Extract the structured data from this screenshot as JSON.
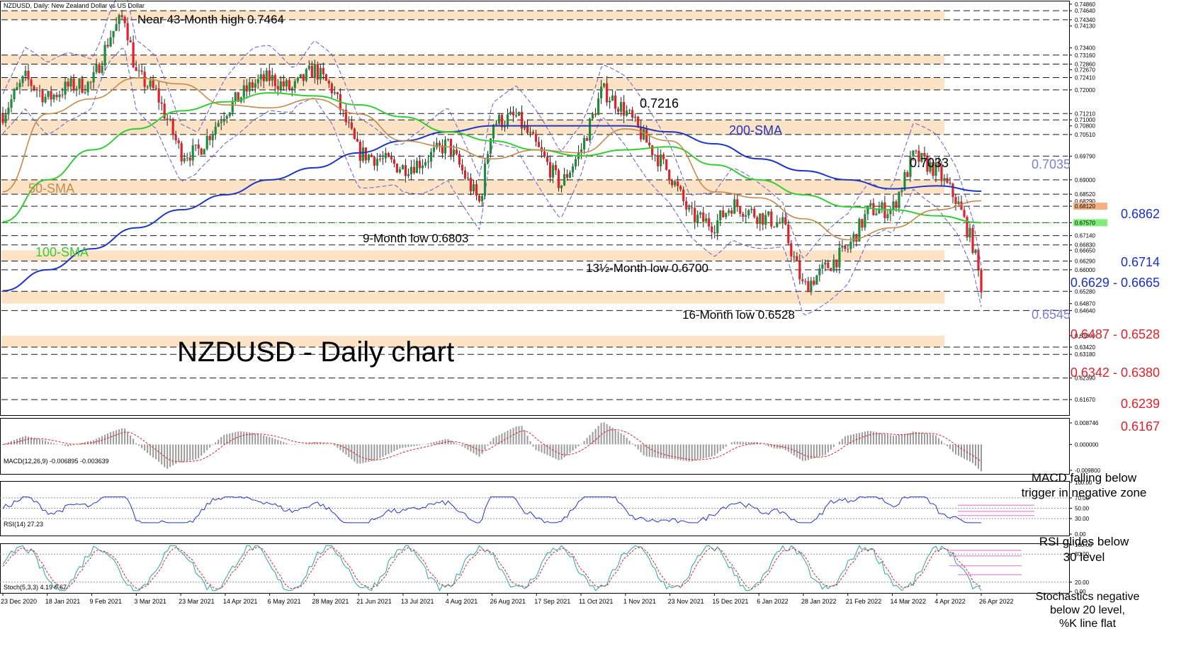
{
  "header": {
    "symbol_line": "NZDUSD, Daily:  New Zealand Dollar vs US Dollar",
    "macd_line": "MACD(12,26,9) -0.006895  -0.003639",
    "rsi_line": "RSI(14) 27.23",
    "stoch_line": "Stoch(5,3,3) 4.19  6.67"
  },
  "title": "NZDUSD - Daily chart",
  "x_labels": [
    "23 Dec 2020",
    "18 Jan 2021",
    "9 Feb 2021",
    "3 Mar 2021",
    "23 Mar 2021",
    "14 Apr 2021",
    "6 May 2021",
    "28 May 2021",
    "21 Jun 2021",
    "13 Jul 2021",
    "4 Aug 2021",
    "26 Aug 2021",
    "17 Sep 2021",
    "11 Oct 2021",
    "1 Nov 2021",
    "23 Nov 2021",
    "15 Dec 2021",
    "6 Jan 2022",
    "28 Jan 2022",
    "21 Feb 2022",
    "14 Mar 2022",
    "4 Apr 2022",
    "26 Apr 2022"
  ],
  "annotations": {
    "high_43m": "Near 43-Month high 0.7464",
    "peak_7216": "0.7216",
    "sma200": "200-SMA",
    "peak_7033": "0.7033",
    "sma50": "50-SMA",
    "sma100": "100-SMA",
    "low_9m": "9-Month low 0.6803",
    "low_13m": "13½-Month low 0.6700",
    "low_16m": "16-Month low 0.6528"
  },
  "right_levels": [
    {
      "text": "0.7035",
      "color": "#7b7fd4"
    },
    {
      "text": "0.6862",
      "color": "#1a2fcc"
    },
    {
      "text": "0.6714",
      "color": "#1a2fcc"
    },
    {
      "text": "0.6629 - 0.6665",
      "color": "#1a2fcc"
    },
    {
      "text": "0.6545",
      "color": "#7b7fd4"
    },
    {
      "text": "0.6487 - 0.6528",
      "color": "#e0202a"
    },
    {
      "text": "0.6342 - 0.6380",
      "color": "#e0202a"
    },
    {
      "text": "0.6239",
      "color": "#e0202a"
    },
    {
      "text": "0.6167",
      "color": "#e0202a"
    }
  ],
  "notes": {
    "macd": [
      "MACD falling below",
      "trigger in negative zone"
    ],
    "rsi": [
      "RSI glides below",
      "30 level"
    ],
    "stoch": [
      "Stochastics negative",
      "below 20 level,",
      "%K line flat"
    ]
  },
  "price_axis": [
    {
      "v": 0.7486,
      "t": "0.74860"
    },
    {
      "v": 0.7464,
      "t": "0.74640"
    },
    {
      "v": 0.7434,
      "t": "0.74340"
    },
    {
      "v": 0.7413,
      "t": "0.74130"
    },
    {
      "v": 0.734,
      "t": "0.73400"
    },
    {
      "v": 0.7316,
      "t": "0.73160"
    },
    {
      "v": 0.7286,
      "t": "0.72860"
    },
    {
      "v": 0.7267,
      "t": "0.72670"
    },
    {
      "v": 0.7241,
      "t": "0.72410"
    },
    {
      "v": 0.72,
      "t": "0.72000"
    },
    {
      "v": 0.7121,
      "t": "0.71210"
    },
    {
      "v": 0.71,
      "t": "0.71000"
    },
    {
      "v": 0.708,
      "t": "0.70800"
    },
    {
      "v": 0.7051,
      "t": "0.70510"
    },
    {
      "v": 0.6979,
      "t": "0.69790"
    },
    {
      "v": 0.69,
      "t": "0.69000"
    },
    {
      "v": 0.6852,
      "t": "0.68520"
    },
    {
      "v": 0.6829,
      "t": "0.68290"
    },
    {
      "v": 0.6812,
      "t": "0.68120",
      "bg": "#f4b183"
    },
    {
      "v": 0.6757,
      "t": "0.67570",
      "bg": "#7ef07a"
    },
    {
      "v": 0.6714,
      "t": "0.67140"
    },
    {
      "v": 0.6683,
      "t": "0.66830"
    },
    {
      "v": 0.6665,
      "t": "0.66650"
    },
    {
      "v": 0.6629,
      "t": "0.66290"
    },
    {
      "v": 0.66,
      "t": "0.66000"
    },
    {
      "v": 0.6528,
      "t": "0.65280"
    },
    {
      "v": 0.6487,
      "t": "0.64870"
    },
    {
      "v": 0.6464,
      "t": "0.64640"
    },
    {
      "v": 0.638,
      "t": "0.63800"
    },
    {
      "v": 0.6342,
      "t": "0.63420"
    },
    {
      "v": 0.6318,
      "t": "0.63180"
    },
    {
      "v": 0.6239,
      "t": "0.62390"
    },
    {
      "v": 0.6167,
      "t": "0.61670"
    }
  ],
  "macd_axis": [
    {
      "v": 0.008746,
      "t": "0.008746"
    },
    {
      "v": 0.0,
      "t": "0.000000"
    },
    {
      "v": -0.0098,
      "t": "-0.009800"
    }
  ],
  "osc_axis": [
    {
      "v": 100,
      "t": "100.00"
    },
    {
      "v": 70,
      "t": "70.00"
    },
    {
      "v": 50,
      "t": "50.00"
    },
    {
      "v": 30,
      "t": "30.00"
    },
    {
      "v": 0,
      "t": "0.00"
    }
  ],
  "stoch_axis": [
    {
      "v": 100,
      "t": "100.00"
    },
    {
      "v": 80,
      "t": "80.00"
    },
    {
      "v": 20,
      "t": "20.00"
    },
    {
      "v": 0,
      "t": "0.00"
    }
  ],
  "chart_data": {
    "type": "line",
    "title": "NZDUSD - Daily chart",
    "ylim": [
      0.612,
      0.7495
    ],
    "dashed_levels": [
      0.7464,
      0.7434,
      0.7316,
      0.7286,
      0.7241,
      0.72,
      0.7121,
      0.71,
      0.7051,
      0.6979,
      0.69,
      0.6852,
      0.6812,
      0.6757,
      0.6714,
      0.6683,
      0.6629,
      0.66,
      0.6528,
      0.6464,
      0.6342,
      0.6318,
      0.6239,
      0.6167
    ],
    "zones": [
      [
        0.7434,
        0.7464
      ],
      [
        0.7286,
        0.7316
      ],
      [
        0.72,
        0.7241
      ],
      [
        0.7051,
        0.71
      ],
      [
        0.6852,
        0.69
      ],
      [
        0.6629,
        0.6665
      ],
      [
        0.6487,
        0.6528
      ],
      [
        0.6342,
        0.638
      ]
    ],
    "price_close": [
      {
        "x": "23 Dec 2020",
        "y": 0.712
      },
      {
        "x": "5 Jan 2021",
        "y": 0.724
      },
      {
        "x": "18 Jan 2021",
        "y": 0.717
      },
      {
        "x": "28 Jan 2021",
        "y": 0.721
      },
      {
        "x": "9 Feb 2021",
        "y": 0.722
      },
      {
        "x": "18 Feb 2021",
        "y": 0.738
      },
      {
        "x": "25 Feb 2021",
        "y": 0.745
      },
      {
        "x": "3 Mar 2021",
        "y": 0.725
      },
      {
        "x": "12 Mar 2021",
        "y": 0.719
      },
      {
        "x": "23 Mar 2021",
        "y": 0.699
      },
      {
        "x": "31 Mar 2021",
        "y": 0.699
      },
      {
        "x": "14 Apr 2021",
        "y": 0.713
      },
      {
        "x": "28 Apr 2021",
        "y": 0.722
      },
      {
        "x": "6 May 2021",
        "y": 0.724
      },
      {
        "x": "17 May 2021",
        "y": 0.72
      },
      {
        "x": "28 May 2021",
        "y": 0.727
      },
      {
        "x": "7 Jun 2021",
        "y": 0.72
      },
      {
        "x": "21 Jun 2021",
        "y": 0.699
      },
      {
        "x": "1 Jul 2021",
        "y": 0.697
      },
      {
        "x": "13 Jul 2021",
        "y": 0.694
      },
      {
        "x": "22 Jul 2021",
        "y": 0.696
      },
      {
        "x": "4 Aug 2021",
        "y": 0.702
      },
      {
        "x": "20 Aug 2021",
        "y": 0.682
      },
      {
        "x": "26 Aug 2021",
        "y": 0.709
      },
      {
        "x": "7 Sep 2021",
        "y": 0.711
      },
      {
        "x": "17 Sep 2021",
        "y": 0.701
      },
      {
        "x": "30 Sep 2021",
        "y": 0.688
      },
      {
        "x": "11 Oct 2021",
        "y": 0.7
      },
      {
        "x": "21 Oct 2021",
        "y": 0.72
      },
      {
        "x": "1 Nov 2021",
        "y": 0.713
      },
      {
        "x": "12 Nov 2021",
        "y": 0.702
      },
      {
        "x": "23 Nov 2021",
        "y": 0.692
      },
      {
        "x": "3 Dec 2021",
        "y": 0.678
      },
      {
        "x": "15 Dec 2021",
        "y": 0.675
      },
      {
        "x": "24 Dec 2021",
        "y": 0.682
      },
      {
        "x": "6 Jan 2022",
        "y": 0.678
      },
      {
        "x": "18 Jan 2022",
        "y": 0.675
      },
      {
        "x": "28 Jan 2022",
        "y": 0.654
      },
      {
        "x": "8 Feb 2022",
        "y": 0.66
      },
      {
        "x": "21 Feb 2022",
        "y": 0.667
      },
      {
        "x": "3 Mar 2022",
        "y": 0.68
      },
      {
        "x": "14 Mar 2022",
        "y": 0.68
      },
      {
        "x": "24 Mar 2022",
        "y": 0.698
      },
      {
        "x": "4 Apr 2022",
        "y": 0.693
      },
      {
        "x": "14 Apr 2022",
        "y": 0.683
      },
      {
        "x": "22 Apr 2022",
        "y": 0.668
      },
      {
        "x": "26 Apr 2022",
        "y": 0.6545
      }
    ],
    "sma50": [
      {
        "x": "23 Dec 2020",
        "y": 0.686
      },
      {
        "x": "18 Jan 2021",
        "y": 0.712
      },
      {
        "x": "9 Feb 2021",
        "y": 0.717
      },
      {
        "x": "3 Mar 2021",
        "y": 0.724
      },
      {
        "x": "23 Mar 2021",
        "y": 0.722
      },
      {
        "x": "14 Apr 2021",
        "y": 0.715
      },
      {
        "x": "6 May 2021",
        "y": 0.714
      },
      {
        "x": "28 May 2021",
        "y": 0.717
      },
      {
        "x": "21 Jun 2021",
        "y": 0.712
      },
      {
        "x": "13 Jul 2021",
        "y": 0.703
      },
      {
        "x": "4 Aug 2021",
        "y": 0.701
      },
      {
        "x": "26 Aug 2021",
        "y": 0.697
      },
      {
        "x": "17 Sep 2021",
        "y": 0.7
      },
      {
        "x": "11 Oct 2021",
        "y": 0.699
      },
      {
        "x": "1 Nov 2021",
        "y": 0.707
      },
      {
        "x": "23 Nov 2021",
        "y": 0.703
      },
      {
        "x": "15 Dec 2021",
        "y": 0.686
      },
      {
        "x": "6 Jan 2022",
        "y": 0.684
      },
      {
        "x": "28 Jan 2022",
        "y": 0.677
      },
      {
        "x": "21 Feb 2022",
        "y": 0.67
      },
      {
        "x": "14 Mar 2022",
        "y": 0.674
      },
      {
        "x": "4 Apr 2022",
        "y": 0.68
      },
      {
        "x": "26 Apr 2022",
        "y": 0.683
      }
    ],
    "sma100": [
      {
        "x": "23 Dec 2020",
        "y": 0.676
      },
      {
        "x": "18 Jan 2021",
        "y": 0.69
      },
      {
        "x": "9 Feb 2021",
        "y": 0.7
      },
      {
        "x": "3 Mar 2021",
        "y": 0.707
      },
      {
        "x": "23 Mar 2021",
        "y": 0.713
      },
      {
        "x": "14 Apr 2021",
        "y": 0.716
      },
      {
        "x": "6 May 2021",
        "y": 0.719
      },
      {
        "x": "28 May 2021",
        "y": 0.718
      },
      {
        "x": "21 Jun 2021",
        "y": 0.715
      },
      {
        "x": "13 Jul 2021",
        "y": 0.711
      },
      {
        "x": "4 Aug 2021",
        "y": 0.706
      },
      {
        "x": "26 Aug 2021",
        "y": 0.703
      },
      {
        "x": "17 Sep 2021",
        "y": 0.7
      },
      {
        "x": "11 Oct 2021",
        "y": 0.698
      },
      {
        "x": "1 Nov 2021",
        "y": 0.7
      },
      {
        "x": "23 Nov 2021",
        "y": 0.701
      },
      {
        "x": "15 Dec 2021",
        "y": 0.695
      },
      {
        "x": "6 Jan 2022",
        "y": 0.69
      },
      {
        "x": "28 Jan 2022",
        "y": 0.685
      },
      {
        "x": "21 Feb 2022",
        "y": 0.681
      },
      {
        "x": "14 Mar 2022",
        "y": 0.68
      },
      {
        "x": "4 Apr 2022",
        "y": 0.678
      },
      {
        "x": "26 Apr 2022",
        "y": 0.6757
      }
    ],
    "sma200": [
      {
        "x": "23 Dec 2020",
        "y": 0.653
      },
      {
        "x": "18 Jan 2021",
        "y": 0.66
      },
      {
        "x": "9 Feb 2021",
        "y": 0.667
      },
      {
        "x": "3 Mar 2021",
        "y": 0.674
      },
      {
        "x": "23 Mar 2021",
        "y": 0.68
      },
      {
        "x": "14 Apr 2021",
        "y": 0.685
      },
      {
        "x": "6 May 2021",
        "y": 0.69
      },
      {
        "x": "28 May 2021",
        "y": 0.694
      },
      {
        "x": "21 Jun 2021",
        "y": 0.699
      },
      {
        "x": "13 Jul 2021",
        "y": 0.703
      },
      {
        "x": "4 Aug 2021",
        "y": 0.706
      },
      {
        "x": "26 Aug 2021",
        "y": 0.708
      },
      {
        "x": "17 Sep 2021",
        "y": 0.708
      },
      {
        "x": "11 Oct 2021",
        "y": 0.708
      },
      {
        "x": "1 Nov 2021",
        "y": 0.708
      },
      {
        "x": "23 Nov 2021",
        "y": 0.706
      },
      {
        "x": "15 Dec 2021",
        "y": 0.702
      },
      {
        "x": "6 Jan 2022",
        "y": 0.697
      },
      {
        "x": "28 Jan 2022",
        "y": 0.693
      },
      {
        "x": "21 Feb 2022",
        "y": 0.69
      },
      {
        "x": "14 Mar 2022",
        "y": 0.687
      },
      {
        "x": "4 Apr 2022",
        "y": 0.688
      },
      {
        "x": "26 Apr 2022",
        "y": 0.6862
      }
    ]
  },
  "colors": {
    "zone": "#fde3c6",
    "dashed": "#1a1a1a",
    "sma50": "#c48a4a",
    "sma100": "#33cc33",
    "sma200": "#1f35c4",
    "bollinger": "#5a5fd8",
    "candle_up": "#1e8c3a",
    "candle_down": "#e0202a",
    "rsi": "#2233cc",
    "stoch_k": "#26a6a6",
    "stoch_d": "#e0202a",
    "macd_signal": "#e0202a",
    "macd_hist": "#9a9a9a",
    "helper": "#e06ad6"
  }
}
